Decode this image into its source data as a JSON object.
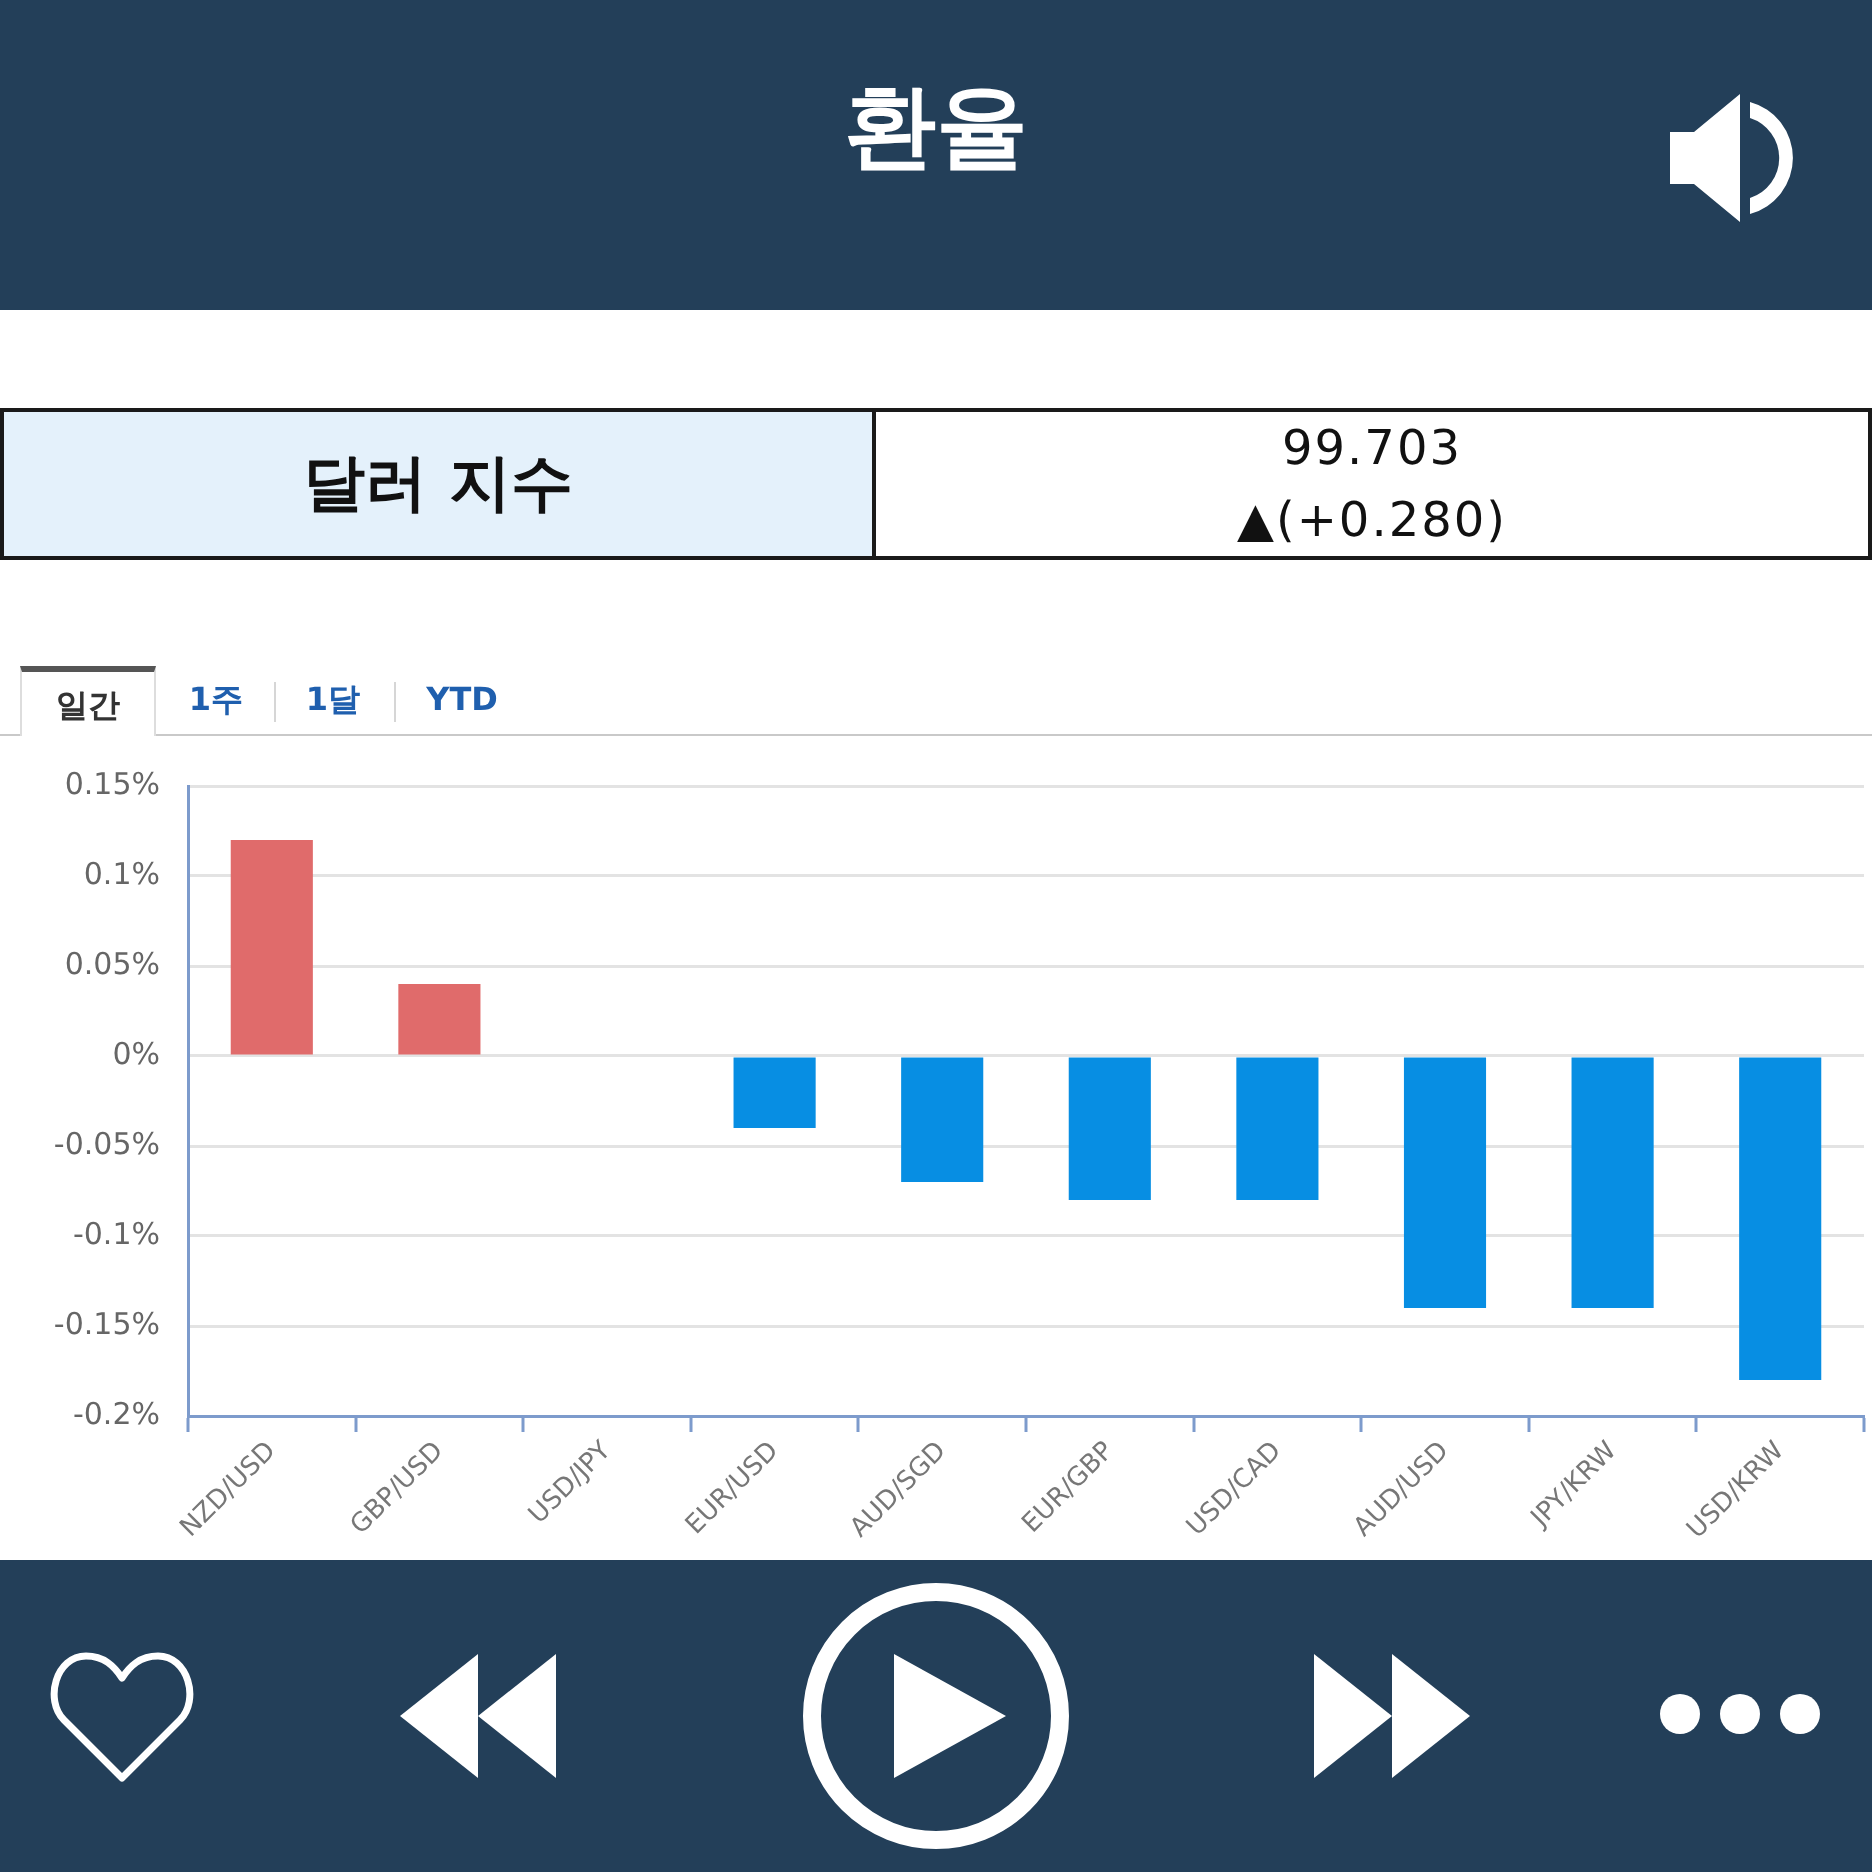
{
  "chart_data": {
    "type": "bar",
    "title": "환율",
    "annotations": [
      "달러 지수",
      "99.703",
      "▲(+0.280)",
      "일간",
      "1주",
      "1달",
      "YTD"
    ],
    "categories": [
      "NZD/USD",
      "GBP/USD",
      "USD/JPY",
      "EUR/USD",
      "AUD/SGD",
      "EUR/GBP",
      "USD/CAD",
      "AUD/USD",
      "JPY/KRW",
      "USD/KRW"
    ],
    "values": [
      0.12,
      0.04,
      0,
      -0.04,
      -0.07,
      -0.08,
      -0.08,
      -0.14,
      -0.14,
      -0.18
    ],
    "colors": [
      "#e06b6b",
      "#e06b6b",
      "#078ee3",
      "#078ee3",
      "#078ee3",
      "#078ee3",
      "#078ee3",
      "#078ee3",
      "#078ee3",
      "#078ee3"
    ],
    "ylim": [
      -0.2,
      0.15
    ],
    "yticks": [
      {
        "value": -0.2,
        "label": "-0.2%"
      },
      {
        "value": -0.15,
        "label": "-0.15%"
      },
      {
        "value": -0.1,
        "label": "-0.1%"
      },
      {
        "value": -0.05,
        "label": "-0.05%"
      },
      {
        "value": 0,
        "label": "0%"
      },
      {
        "value": 0.05,
        "label": "0.05%"
      },
      {
        "value": 0.1,
        "label": "0.1%"
      },
      {
        "value": 0.15,
        "label": "0.15%"
      }
    ],
    "grid": "y"
  }
}
